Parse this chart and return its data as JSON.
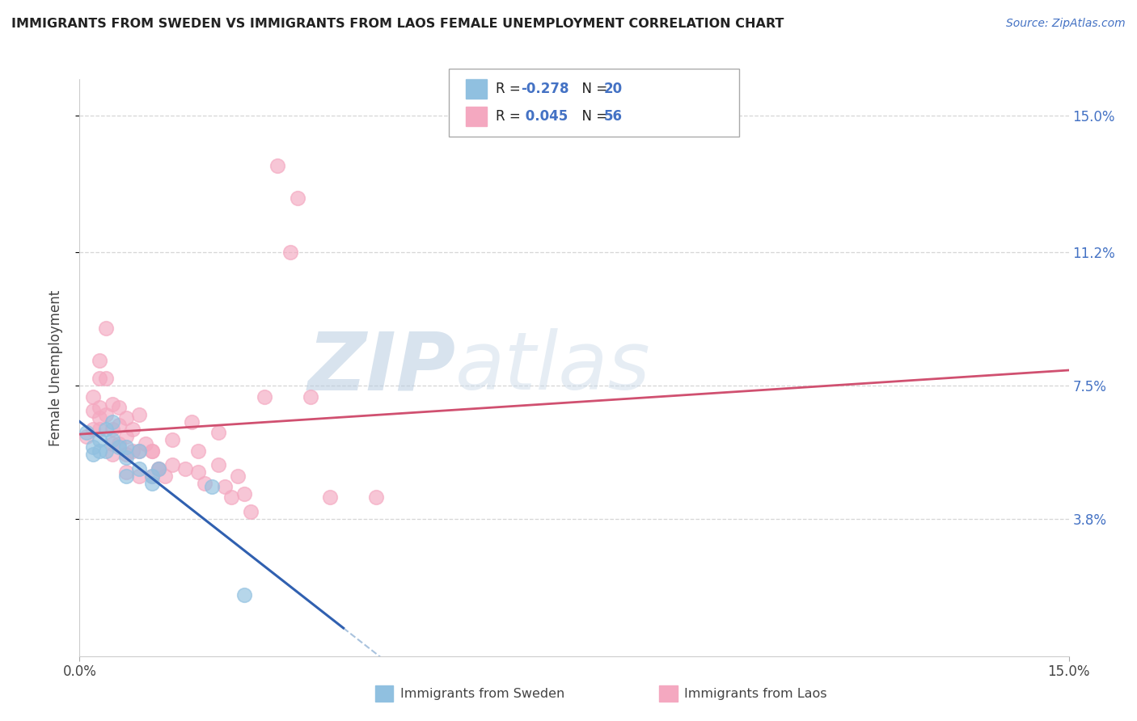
{
  "title": "IMMIGRANTS FROM SWEDEN VS IMMIGRANTS FROM LAOS FEMALE UNEMPLOYMENT CORRELATION CHART",
  "source": "Source: ZipAtlas.com",
  "ylabel": "Female Unemployment",
  "ytick_labels": [
    "15.0%",
    "11.2%",
    "7.5%",
    "3.8%"
  ],
  "ytick_values": [
    0.15,
    0.112,
    0.075,
    0.038
  ],
  "xlim": [
    0.0,
    0.15
  ],
  "ylim": [
    0.0,
    0.16
  ],
  "sweden_scatter": [
    [
      0.001,
      0.062
    ],
    [
      0.002,
      0.058
    ],
    [
      0.002,
      0.056
    ],
    [
      0.003,
      0.06
    ],
    [
      0.003,
      0.057
    ],
    [
      0.004,
      0.063
    ],
    [
      0.004,
      0.057
    ],
    [
      0.005,
      0.065
    ],
    [
      0.005,
      0.06
    ],
    [
      0.006,
      0.058
    ],
    [
      0.007,
      0.058
    ],
    [
      0.007,
      0.055
    ],
    [
      0.007,
      0.05
    ],
    [
      0.009,
      0.057
    ],
    [
      0.009,
      0.052
    ],
    [
      0.011,
      0.05
    ],
    [
      0.011,
      0.048
    ],
    [
      0.012,
      0.052
    ],
    [
      0.02,
      0.047
    ],
    [
      0.025,
      0.017
    ]
  ],
  "laos_scatter": [
    [
      0.001,
      0.061
    ],
    [
      0.002,
      0.072
    ],
    [
      0.002,
      0.063
    ],
    [
      0.002,
      0.068
    ],
    [
      0.003,
      0.082
    ],
    [
      0.003,
      0.066
    ],
    [
      0.003,
      0.077
    ],
    [
      0.003,
      0.069
    ],
    [
      0.003,
      0.063
    ],
    [
      0.004,
      0.091
    ],
    [
      0.004,
      0.077
    ],
    [
      0.004,
      0.067
    ],
    [
      0.005,
      0.07
    ],
    [
      0.005,
      0.063
    ],
    [
      0.005,
      0.059
    ],
    [
      0.005,
      0.056
    ],
    [
      0.006,
      0.069
    ],
    [
      0.006,
      0.064
    ],
    [
      0.006,
      0.059
    ],
    [
      0.007,
      0.066
    ],
    [
      0.007,
      0.061
    ],
    [
      0.007,
      0.056
    ],
    [
      0.007,
      0.051
    ],
    [
      0.008,
      0.063
    ],
    [
      0.008,
      0.057
    ],
    [
      0.009,
      0.067
    ],
    [
      0.009,
      0.057
    ],
    [
      0.009,
      0.05
    ],
    [
      0.01,
      0.059
    ],
    [
      0.011,
      0.057
    ],
    [
      0.011,
      0.05
    ],
    [
      0.011,
      0.057
    ],
    [
      0.012,
      0.052
    ],
    [
      0.012,
      0.052
    ],
    [
      0.013,
      0.05
    ],
    [
      0.014,
      0.06
    ],
    [
      0.014,
      0.053
    ],
    [
      0.016,
      0.052
    ],
    [
      0.017,
      0.065
    ],
    [
      0.018,
      0.057
    ],
    [
      0.018,
      0.051
    ],
    [
      0.019,
      0.048
    ],
    [
      0.021,
      0.062
    ],
    [
      0.021,
      0.053
    ],
    [
      0.022,
      0.047
    ],
    [
      0.023,
      0.044
    ],
    [
      0.024,
      0.05
    ],
    [
      0.025,
      0.045
    ],
    [
      0.026,
      0.04
    ],
    [
      0.028,
      0.072
    ],
    [
      0.03,
      0.136
    ],
    [
      0.032,
      0.112
    ],
    [
      0.033,
      0.127
    ],
    [
      0.035,
      0.072
    ],
    [
      0.038,
      0.044
    ],
    [
      0.045,
      0.044
    ]
  ],
  "sweden_color": "#90c0e0",
  "laos_color": "#f4a8c0",
  "sweden_line_color": "#3060b0",
  "laos_line_color": "#d05070",
  "grid_color": "#cccccc",
  "watermark_color": "#c8d8e8",
  "background_color": "#ffffff",
  "r_sweden": "-0.278",
  "n_sweden": "20",
  "r_laos": "0.045",
  "n_laos": "56",
  "blue_line_end_x": 0.04,
  "dash_line_start_x": 0.04,
  "dash_line_end_x": 0.15
}
